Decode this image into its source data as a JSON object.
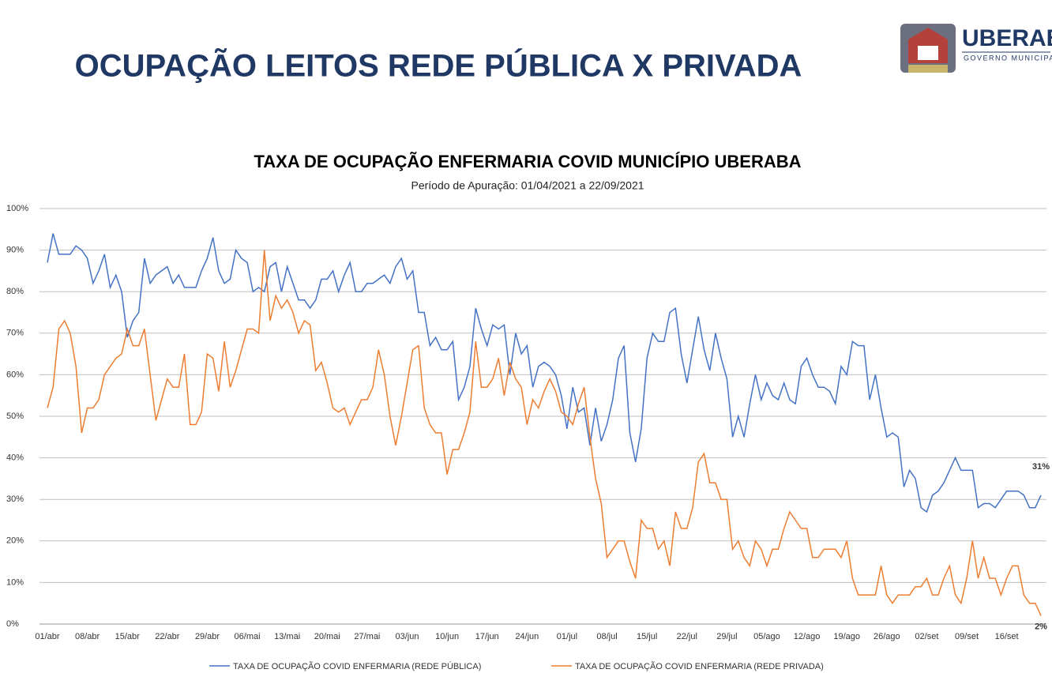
{
  "header": {
    "title": "OCUPAÇÃO LEITOS REDE PÚBLICA X PRIVADA"
  },
  "logo": {
    "name": "UBERABA",
    "subtitle": "GOVERNO MUNICIPAL"
  },
  "chart_data": {
    "type": "line",
    "title": "TAXA DE OCUPAÇÃO ENFERMARIA COVID MUNICÍPIO UBERABA",
    "subtitle": "Período de Apuração: 01/04/2021 a 22/09/2021",
    "categories": [
      "01/abr",
      null,
      null,
      null,
      null,
      null,
      null,
      "08/abr",
      null,
      null,
      null,
      null,
      null,
      null,
      "15/abr",
      null,
      null,
      null,
      null,
      null,
      null,
      "22/abr",
      null,
      null,
      null,
      null,
      null,
      null,
      "29/abr",
      null,
      null,
      null,
      null,
      null,
      null,
      "06/mai",
      null,
      null,
      null,
      null,
      null,
      null,
      "13/mai",
      null,
      null,
      null,
      null,
      null,
      null,
      "20/mai",
      null,
      null,
      null,
      null,
      null,
      null,
      "27/mai",
      null,
      null,
      null,
      null,
      null,
      null,
      "03/jun",
      null,
      null,
      null,
      null,
      null,
      null,
      "10/jun",
      null,
      null,
      null,
      null,
      null,
      null,
      "17/jun",
      null,
      null,
      null,
      null,
      null,
      null,
      "24/jun",
      null,
      null,
      null,
      null,
      null,
      null,
      "01/jul",
      null,
      null,
      null,
      null,
      null,
      null,
      "08/jul",
      null,
      null,
      null,
      null,
      null,
      null,
      "15/jul",
      null,
      null,
      null,
      null,
      null,
      null,
      "22/jul",
      null,
      null,
      null,
      null,
      null,
      null,
      "29/jul",
      null,
      null,
      null,
      null,
      null,
      null,
      "05/ago",
      null,
      null,
      null,
      null,
      null,
      null,
      "12/ago",
      null,
      null,
      null,
      null,
      null,
      null,
      "19/ago",
      null,
      null,
      null,
      null,
      null,
      null,
      "26/ago",
      null,
      null,
      null,
      null,
      null,
      null,
      "02/set",
      null,
      null,
      null,
      null,
      null,
      null,
      "09/set",
      null,
      null,
      null,
      null,
      null,
      null,
      "16/set",
      null,
      null,
      null,
      null,
      null,
      null
    ],
    "series": [
      {
        "name": "TAXA DE OCUPAÇÃO COVID ENFERMARIA (REDE PÚBLICA)",
        "color": "#4472c4",
        "values": [
          87,
          94,
          89,
          89,
          89,
          91,
          90,
          88,
          82,
          85,
          89,
          81,
          84,
          80,
          69,
          73,
          75,
          88,
          82,
          84,
          85,
          86,
          82,
          84,
          81,
          81,
          81,
          85,
          88,
          93,
          85,
          82,
          83,
          90,
          88,
          87,
          80,
          81,
          80,
          86,
          87,
          80,
          86,
          82,
          78,
          78,
          76,
          78,
          83,
          83,
          85,
          80,
          84,
          87,
          80,
          80,
          82,
          82,
          83,
          84,
          82,
          86,
          88,
          83,
          85,
          75,
          75,
          67,
          69,
          66,
          66,
          68,
          54,
          57,
          62,
          76,
          71,
          67,
          72,
          71,
          72,
          60,
          70,
          65,
          67,
          57,
          62,
          63,
          62,
          60,
          55,
          47,
          57,
          51,
          52,
          43,
          52,
          44,
          48,
          54,
          64,
          67,
          46,
          39,
          47,
          64,
          70,
          68,
          68,
          75,
          76,
          65,
          58,
          66,
          74,
          66,
          61,
          70,
          64,
          59,
          45,
          50,
          45,
          53,
          60,
          54,
          58,
          55,
          54,
          58,
          54,
          53,
          62,
          64,
          60,
          57,
          57,
          56,
          53,
          62,
          60,
          68,
          67,
          67,
          54,
          60,
          52,
          45,
          46,
          45,
          33,
          37,
          35,
          28,
          27,
          31,
          32,
          34,
          37,
          40,
          37,
          37,
          37,
          28,
          29,
          29,
          28,
          30,
          32,
          32,
          32,
          31,
          28,
          28,
          31
        ],
        "value_labels": [
          null,
          null,
          null,
          null,
          null,
          null,
          null,
          null,
          null,
          null,
          null,
          null,
          null,
          null,
          null,
          null,
          null,
          null,
          null,
          null,
          null,
          null,
          null,
          null,
          null,
          null,
          null,
          null,
          null,
          null,
          null,
          null,
          null,
          null,
          null,
          null,
          null,
          null,
          null,
          null,
          null,
          null,
          null,
          null,
          null,
          null,
          null,
          null,
          null,
          null,
          null,
          null,
          null,
          null,
          null,
          null,
          null,
          null,
          null,
          null,
          null,
          null,
          null,
          null,
          null,
          null,
          null,
          null,
          null,
          null,
          null,
          null,
          null,
          null,
          null,
          null,
          null,
          null,
          null,
          null,
          null,
          null,
          null,
          null,
          null,
          null,
          null,
          null,
          null,
          null,
          null,
          null,
          null,
          null,
          null,
          null,
          null,
          null,
          null,
          null,
          null,
          null,
          null,
          null,
          null,
          null,
          null,
          null,
          null,
          null,
          null,
          null,
          null,
          null,
          null,
          null,
          null,
          null,
          null,
          null,
          null,
          null,
          null,
          null,
          null,
          null,
          null,
          null,
          null,
          null,
          null,
          null,
          null,
          null,
          null,
          null,
          null,
          null,
          null,
          null,
          null,
          null,
          null,
          null,
          null,
          null,
          null,
          null,
          null,
          null,
          null,
          null,
          null,
          null,
          null,
          null,
          null,
          null,
          null,
          null,
          null,
          null,
          null,
          null,
          null,
          null,
          null,
          null,
          null,
          null,
          null,
          null,
          null,
          null,
          "31%"
        ]
      },
      {
        "name": "TAXA DE OCUPAÇÃO COVID ENFERMARIA (REDE PRIVADA)",
        "color": "#ed7d31",
        "values": [
          52,
          57,
          71,
          73,
          70,
          62,
          46,
          52,
          52,
          54,
          60,
          62,
          64,
          65,
          71,
          67,
          67,
          71,
          60,
          49,
          54,
          59,
          57,
          57,
          65,
          48,
          48,
          51,
          65,
          64,
          56,
          68,
          57,
          61,
          66,
          71,
          71,
          70,
          90,
          73,
          79,
          76,
          78,
          75,
          70,
          73,
          72,
          61,
          63,
          58,
          52,
          51,
          52,
          48,
          51,
          54,
          54,
          57,
          66,
          60,
          50,
          43,
          50,
          58,
          66,
          67,
          52,
          48,
          46,
          46,
          36,
          42,
          42,
          46,
          51,
          68,
          57,
          57,
          59,
          64,
          55,
          63,
          59,
          57,
          48,
          54,
          52,
          56,
          59,
          56,
          51,
          50,
          48,
          53,
          57,
          45,
          35,
          29,
          16,
          18,
          20,
          20,
          15,
          11,
          25,
          23,
          23,
          18,
          20,
          14,
          27,
          23,
          23,
          28,
          39,
          41,
          34,
          34,
          30,
          30,
          18,
          20,
          16,
          14,
          20,
          18,
          14,
          18,
          18,
          23,
          27,
          25,
          23,
          23,
          16,
          16,
          18,
          18,
          18,
          16,
          20,
          11,
          7,
          7,
          7,
          7,
          14,
          7,
          5,
          7,
          7,
          7,
          9,
          9,
          11,
          7,
          7,
          11,
          14,
          7,
          5,
          11,
          20,
          11,
          16,
          11,
          11,
          7,
          11,
          14,
          14,
          7,
          5,
          5,
          2
        ],
        "value_labels": [
          null,
          null,
          null,
          null,
          null,
          null,
          null,
          null,
          null,
          null,
          null,
          null,
          null,
          null,
          null,
          null,
          null,
          null,
          null,
          null,
          null,
          null,
          null,
          null,
          null,
          null,
          null,
          null,
          null,
          null,
          null,
          null,
          null,
          null,
          null,
          null,
          null,
          null,
          null,
          null,
          null,
          null,
          null,
          null,
          null,
          null,
          null,
          null,
          null,
          null,
          null,
          null,
          null,
          null,
          null,
          null,
          null,
          null,
          null,
          null,
          null,
          null,
          null,
          null,
          null,
          null,
          null,
          null,
          null,
          null,
          null,
          null,
          null,
          null,
          null,
          null,
          null,
          null,
          null,
          null,
          null,
          null,
          null,
          null,
          null,
          null,
          null,
          null,
          null,
          null,
          null,
          null,
          null,
          null,
          null,
          null,
          null,
          null,
          null,
          null,
          null,
          null,
          null,
          null,
          null,
          null,
          null,
          null,
          null,
          null,
          null,
          null,
          null,
          null,
          null,
          null,
          null,
          null,
          null,
          null,
          null,
          null,
          null,
          null,
          null,
          null,
          null,
          null,
          null,
          null,
          null,
          null,
          null,
          null,
          null,
          null,
          null,
          null,
          null,
          null,
          null,
          null,
          null,
          null,
          null,
          null,
          null,
          null,
          null,
          null,
          null,
          null,
          null,
          null,
          null,
          null,
          null,
          null,
          null,
          null,
          null,
          null,
          null,
          null,
          null,
          null,
          null,
          null,
          null,
          null,
          null,
          null,
          null,
          null,
          "2%"
        ]
      }
    ],
    "ylim": [
      0,
      100
    ],
    "yticks": [
      {
        "value": 0,
        "label": "0%"
      },
      {
        "value": 10,
        "label": "10%"
      },
      {
        "value": 20,
        "label": "20%"
      },
      {
        "value": 30,
        "label": "30%"
      },
      {
        "value": 40,
        "label": "40%"
      },
      {
        "value": 50,
        "label": "50%"
      },
      {
        "value": 60,
        "label": "60%"
      },
      {
        "value": 70,
        "label": "70%"
      },
      {
        "value": 80,
        "label": "80%"
      },
      {
        "value": 90,
        "label": "90%"
      },
      {
        "value": 100,
        "label": "100%"
      }
    ],
    "grid": true,
    "legend": "bottom"
  }
}
